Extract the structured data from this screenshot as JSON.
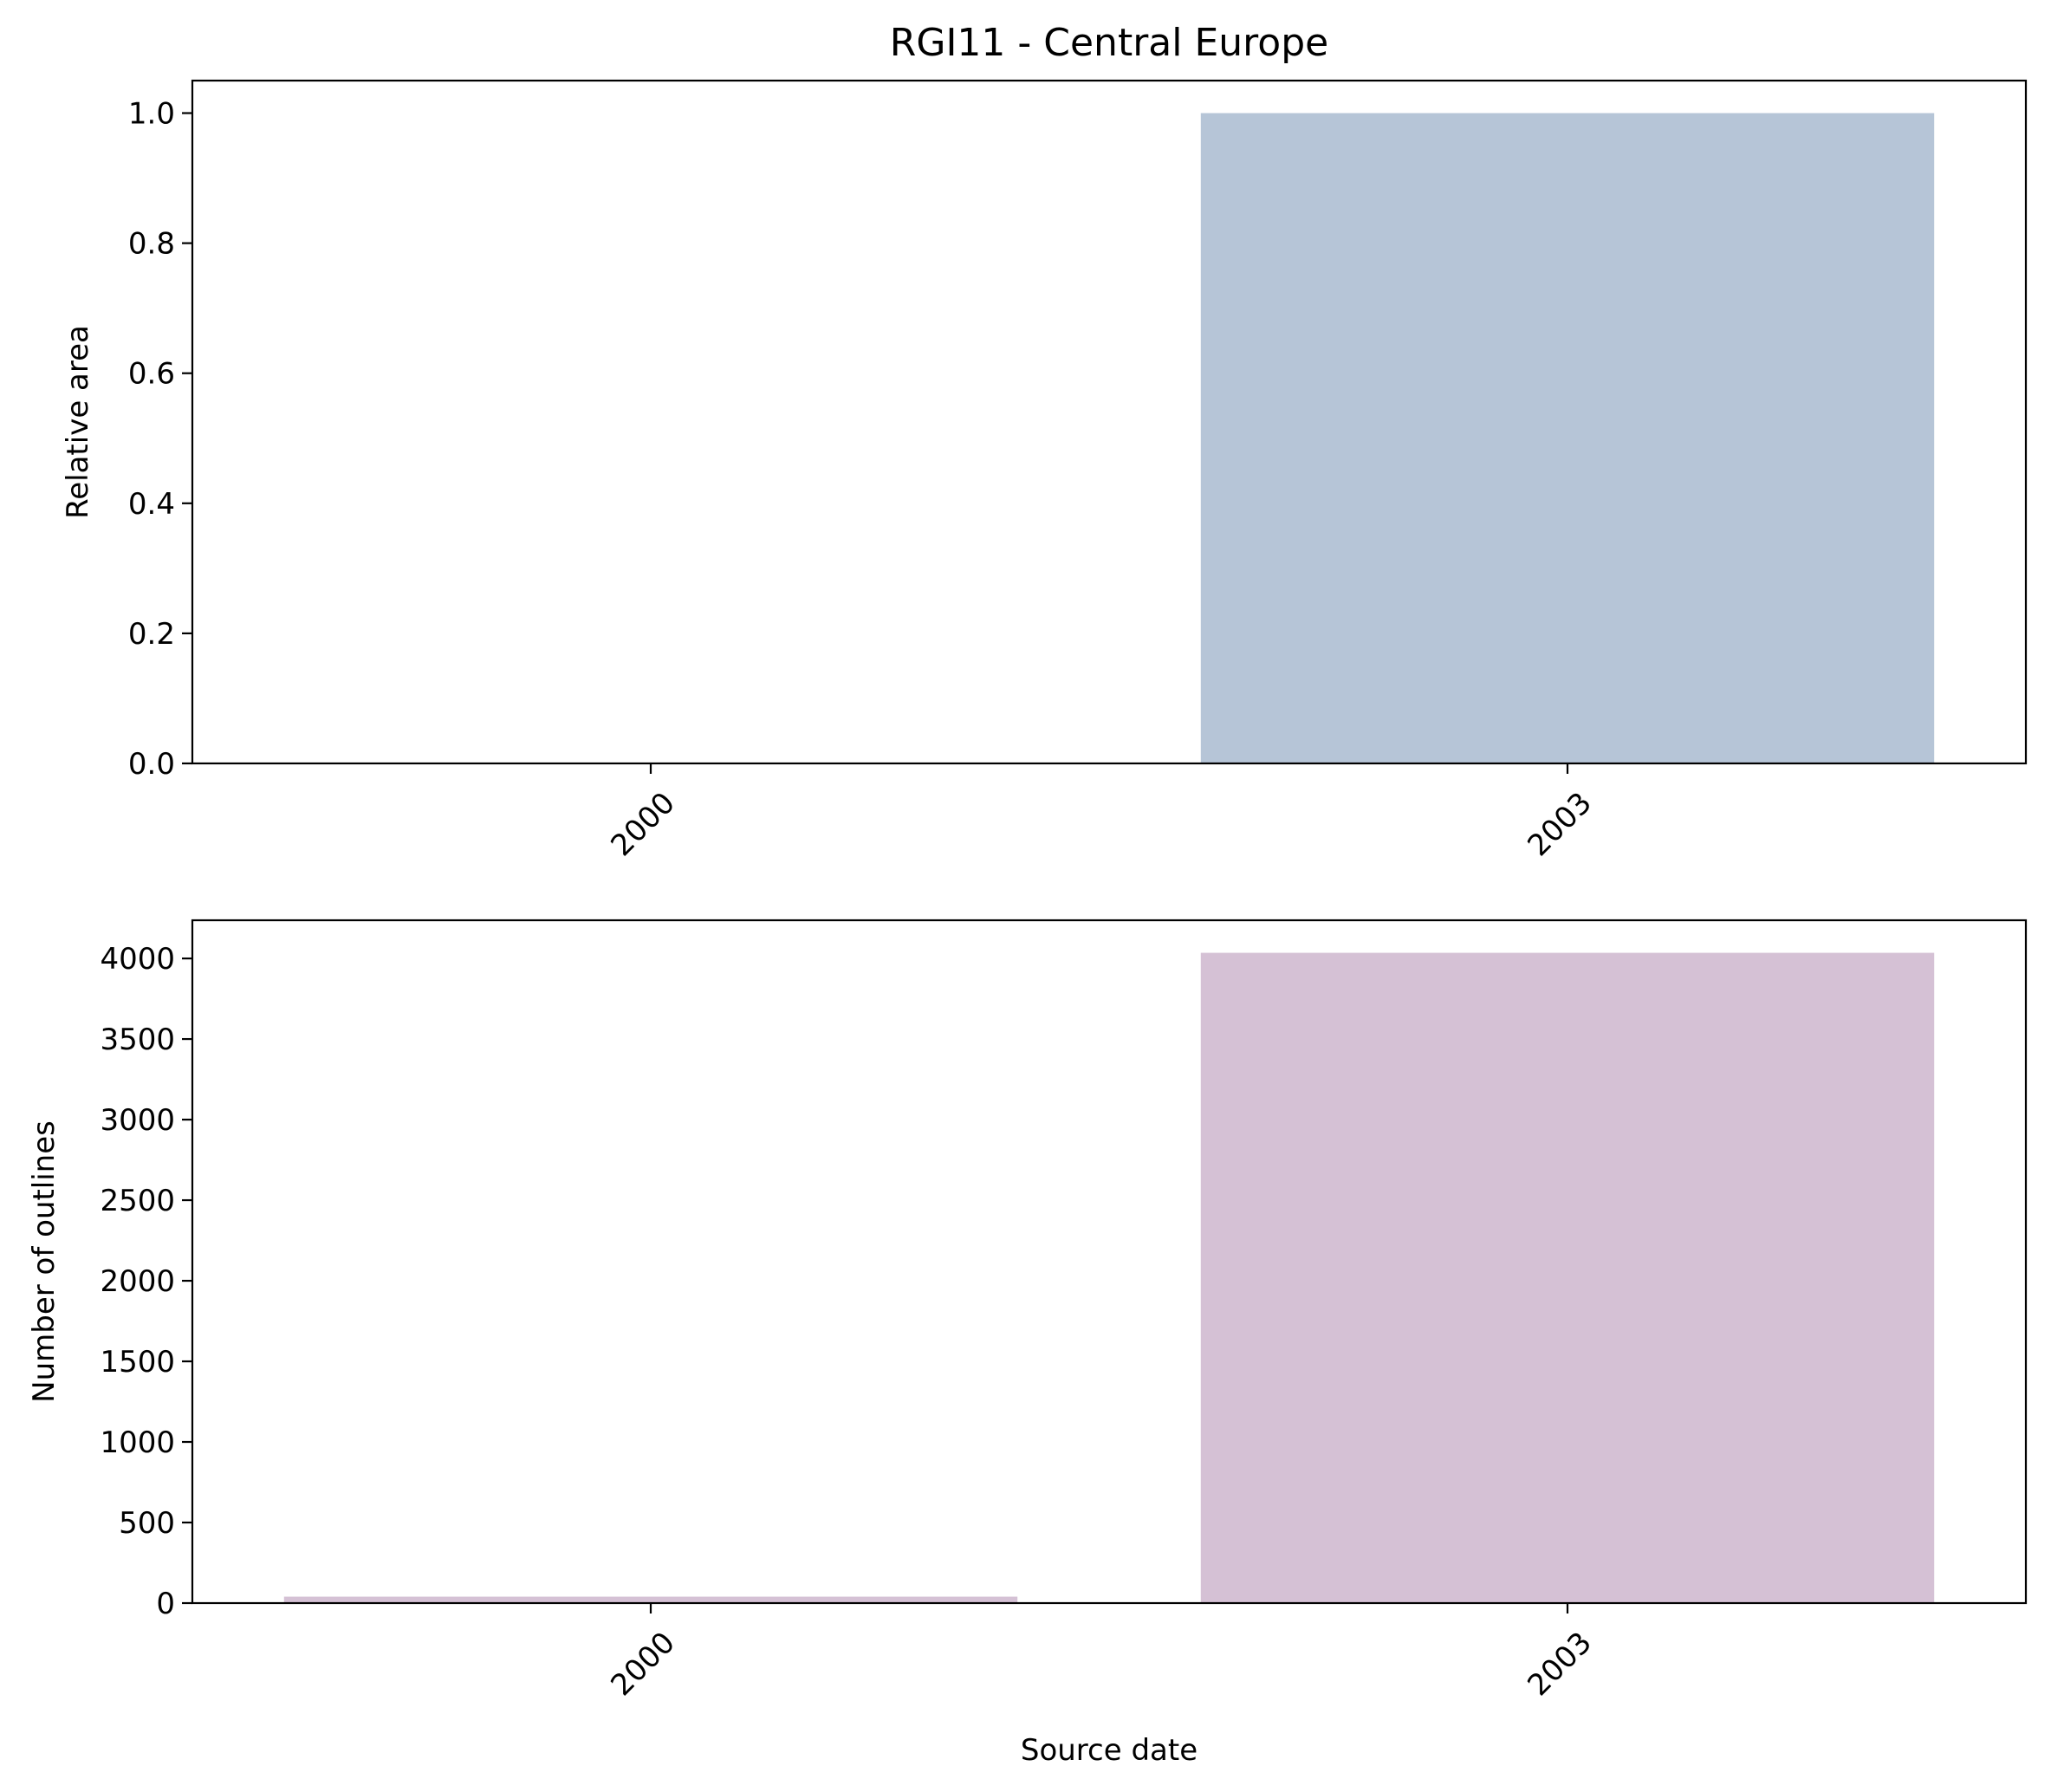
{
  "figure": {
    "title": "RGI11 - Central Europe"
  },
  "chart_data": [
    {
      "type": "bar",
      "title": "RGI11 - Central Europe",
      "categories": [
        "2000",
        "2003"
      ],
      "values": [
        0.0,
        1.0
      ],
      "xlabel": "",
      "ylabel": "Relative area",
      "ylim": [
        0,
        1.05
      ],
      "yticks": [
        0.0,
        0.2,
        0.4,
        0.6,
        0.8,
        1.0
      ],
      "ytick_labels": [
        "0.0",
        "0.2",
        "0.4",
        "0.6",
        "0.8",
        "1.0"
      ],
      "color": "#b6c5d7",
      "grid": false
    },
    {
      "type": "bar",
      "title": "",
      "categories": [
        "2000",
        "2003"
      ],
      "values": [
        40,
        4035
      ],
      "xlabel": "Source date",
      "ylabel": "Number of outlines",
      "ylim": [
        0,
        4237
      ],
      "yticks": [
        0,
        500,
        1000,
        1500,
        2000,
        2500,
        3000,
        3500,
        4000
      ],
      "ytick_labels": [
        "0",
        "500",
        "1000",
        "1500",
        "2000",
        "2500",
        "3000",
        "3500",
        "4000"
      ],
      "color": "#d5c1d5",
      "grid": false
    }
  ]
}
